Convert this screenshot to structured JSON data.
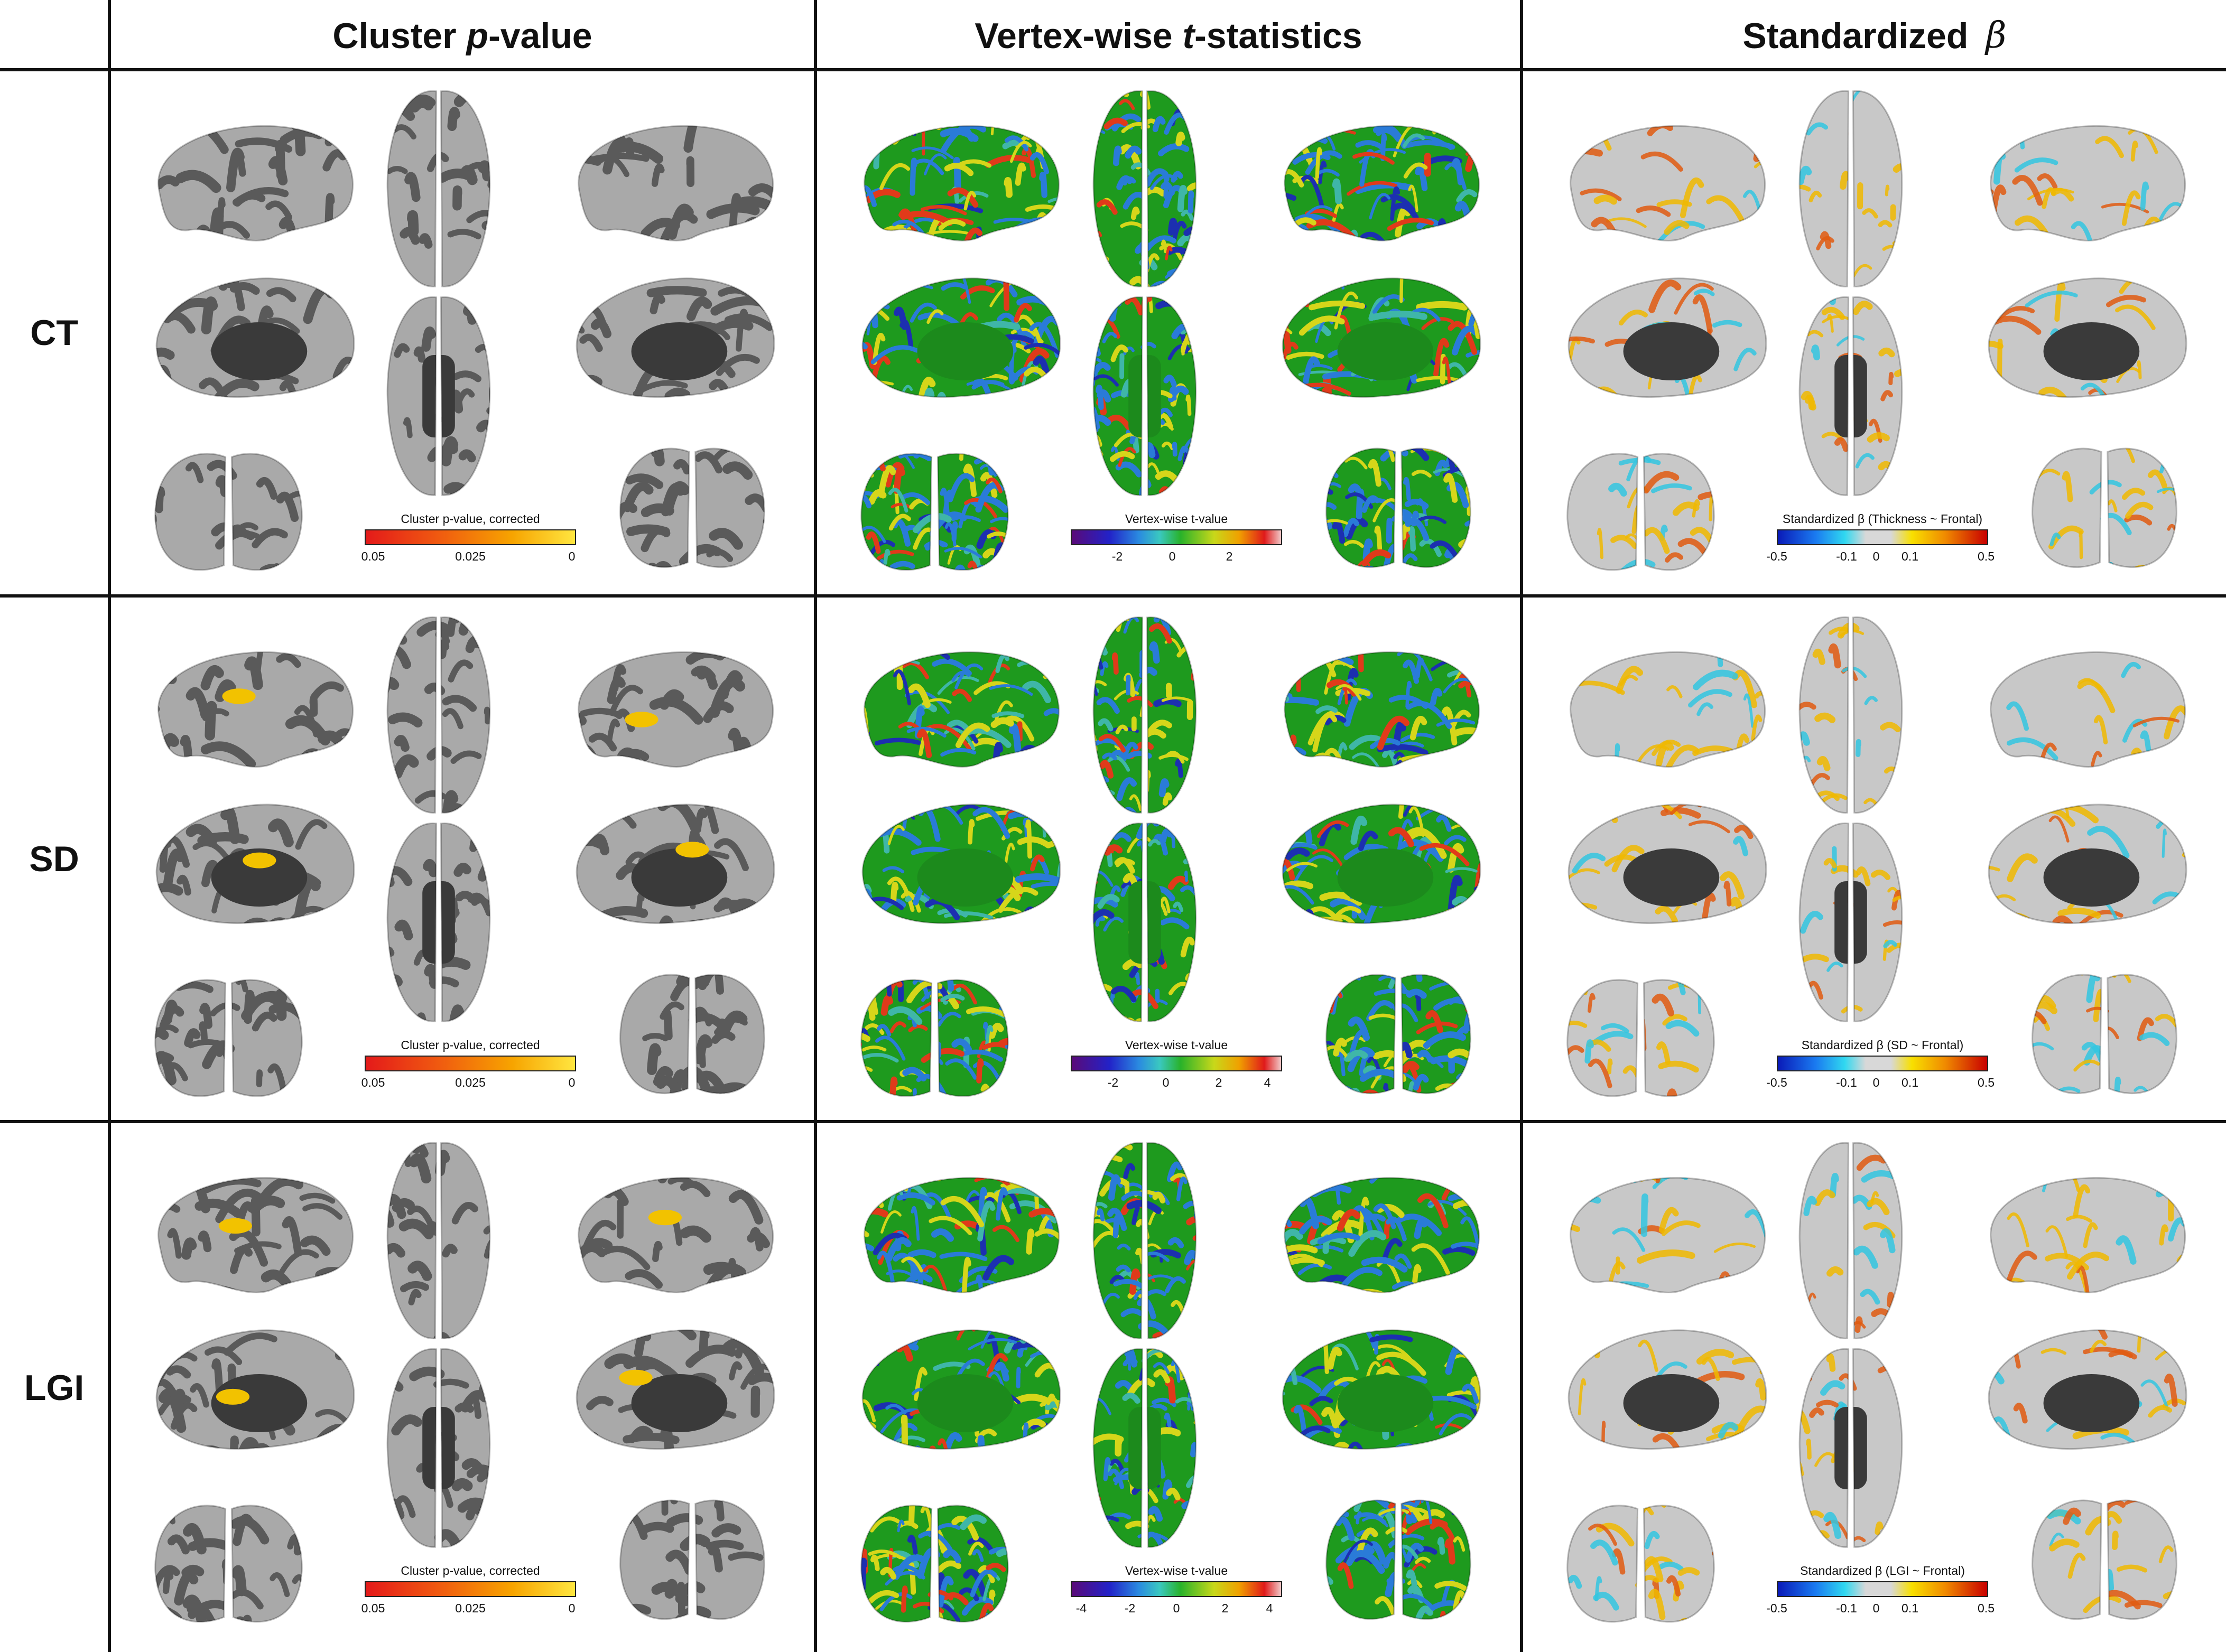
{
  "columns": [
    {
      "prefix": "Cluster ",
      "italic": "p",
      "suffix": "-value"
    },
    {
      "prefix": "Vertex-wise ",
      "italic": "t",
      "suffix": "-statistics"
    },
    {
      "prefix": "Standardized ",
      "beta": "β"
    }
  ],
  "rows": [
    "CT",
    "SD",
    "LGI"
  ],
  "colors": {
    "gyrus": "#a9a9a9",
    "sulcus": "#5a5a5a",
    "medial_wall": "#3a3a3a",
    "surface_gray": "#c8c8c8",
    "green": "#1e9a1e",
    "cluster_yellow": "#f2c200",
    "cluster_red": "#e01010"
  },
  "panels": {
    "CT": {
      "cluster": {
        "bar_title": "Cluster p-value, corrected",
        "ticks": [
          "0.05",
          "0.025",
          "0"
        ],
        "tick_pos": [
          0.04,
          0.5,
          0.98
        ]
      },
      "tstat": {
        "bar_title": "Vertex-wise t-value",
        "ticks": [
          "-2",
          "0",
          "2"
        ],
        "tick_pos": [
          0.22,
          0.48,
          0.75
        ]
      },
      "beta": {
        "bar_title": "Standardized β (Thickness ~ Frontal)",
        "ticks": [
          "-0.5",
          "-0.1",
          "0",
          "0.1",
          "0.5"
        ],
        "tick_pos": [
          0.0,
          0.33,
          0.47,
          0.63,
          0.99
        ]
      }
    },
    "SD": {
      "cluster": {
        "bar_title": "Cluster p-value, corrected",
        "ticks": [
          "0.05",
          "0.025",
          "0"
        ],
        "tick_pos": [
          0.04,
          0.5,
          0.98
        ]
      },
      "tstat": {
        "bar_title": "Vertex-wise t-value",
        "ticks": [
          "-2",
          "0",
          "2",
          "4"
        ],
        "tick_pos": [
          0.2,
          0.45,
          0.7,
          0.93
        ]
      },
      "beta": {
        "bar_title": "Standardized β (SD ~ Frontal)",
        "ticks": [
          "-0.5",
          "-0.1",
          "0",
          "0.1",
          "0.5"
        ],
        "tick_pos": [
          0.0,
          0.33,
          0.47,
          0.63,
          0.99
        ]
      }
    },
    "LGI": {
      "cluster": {
        "bar_title": "Cluster p-value, corrected",
        "ticks": [
          "0.05",
          "0.025",
          "0"
        ],
        "tick_pos": [
          0.04,
          0.5,
          0.98
        ]
      },
      "tstat": {
        "bar_title": "Vertex-wise t-value",
        "ticks": [
          "-4",
          "-2",
          "0",
          "2",
          "4"
        ],
        "tick_pos": [
          0.05,
          0.28,
          0.5,
          0.73,
          0.94
        ]
      },
      "beta": {
        "bar_title": "Standardized β (LGI ~ Frontal)",
        "ticks": [
          "-0.5",
          "-0.1",
          "0",
          "0.1",
          "0.5"
        ],
        "tick_pos": [
          0.0,
          0.33,
          0.47,
          0.63,
          0.99
        ]
      }
    }
  }
}
